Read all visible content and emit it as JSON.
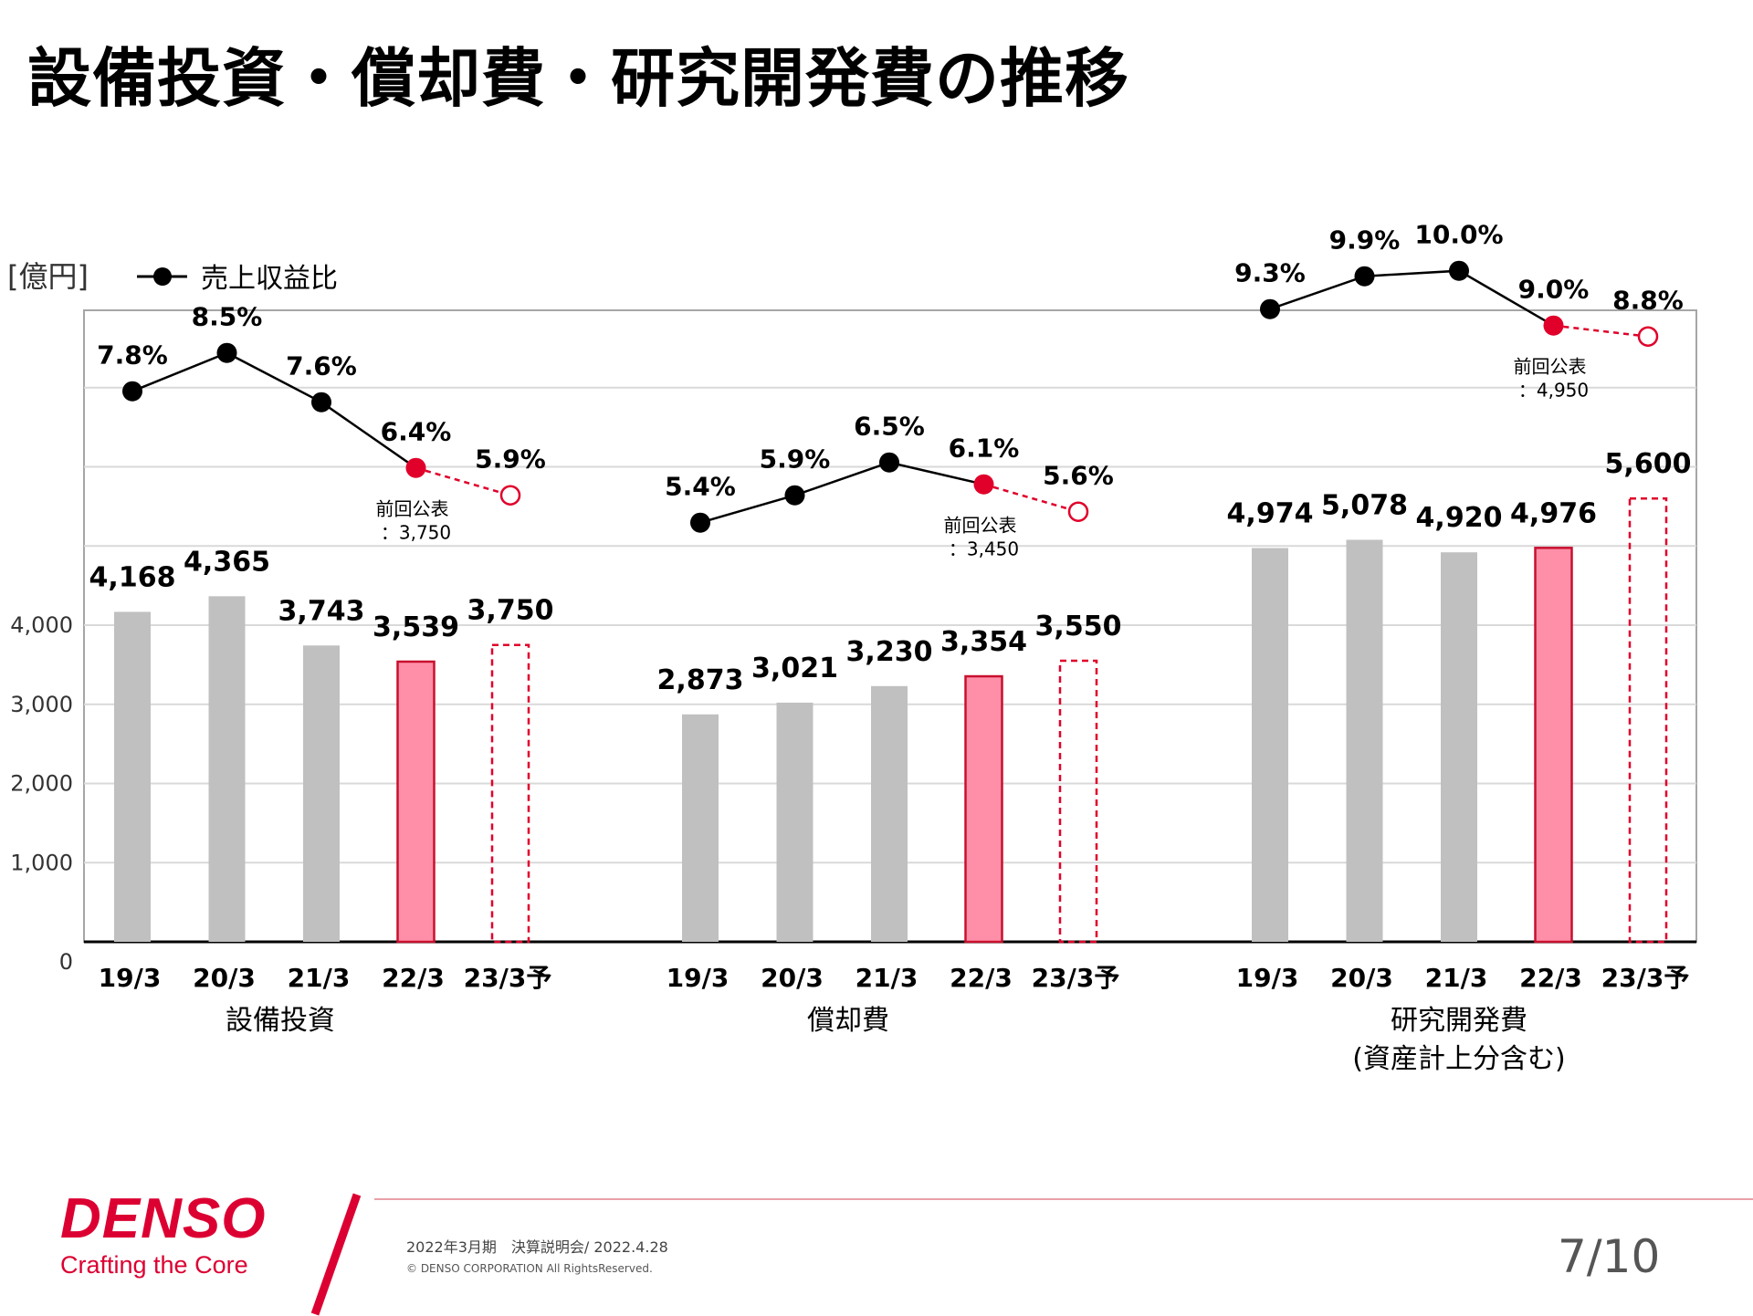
{
  "title": "設備投資・償却費・研究開発費の推移",
  "chart_data": {
    "type": "bar",
    "unit_label": "[億円]",
    "legend_label": "売上収益比",
    "ylim": [
      0,
      8000
    ],
    "y_ticks": [
      0,
      1000,
      2000,
      3000,
      4000
    ],
    "y_tick_labels": [
      "0",
      "1,000",
      "2,000",
      "3,000",
      "4,000"
    ],
    "categories": [
      "19/3",
      "20/3",
      "21/3",
      "22/3",
      "23/3予"
    ],
    "groups": [
      {
        "name": "設備投資",
        "name_line2": "",
        "values": [
          4168,
          4365,
          3743,
          3539,
          3750
        ],
        "value_labels": [
          "4,168",
          "4,365",
          "3,743",
          "3,539",
          "3,750"
        ],
        "ratios": [
          7.8,
          8.5,
          7.6,
          6.4,
          5.9
        ],
        "ratio_labels": [
          "7.8%",
          "8.5%",
          "7.6%",
          "6.4%",
          "5.9%"
        ],
        "prev_announce_label": "前回公表",
        "prev_announce_value": "：3,750"
      },
      {
        "name": "償却費",
        "name_line2": "",
        "values": [
          2873,
          3021,
          3230,
          3354,
          3550
        ],
        "value_labels": [
          "2,873",
          "3,021",
          "3,230",
          "3,354",
          "3,550"
        ],
        "ratios": [
          5.4,
          5.9,
          6.5,
          6.1,
          5.6
        ],
        "ratio_labels": [
          "5.4%",
          "5.9%",
          "6.5%",
          "6.1%",
          "5.6%"
        ],
        "prev_announce_label": "前回公表",
        "prev_announce_value": "：3,450"
      },
      {
        "name": "研究開発費",
        "name_line2": "(資産計上分含む)",
        "values": [
          4974,
          5078,
          4920,
          4976,
          5600
        ],
        "value_labels": [
          "4,974",
          "5,078",
          "4,920",
          "4,976",
          "5,600"
        ],
        "ratios": [
          9.3,
          9.9,
          10.0,
          9.0,
          8.8
        ],
        "ratio_labels": [
          "9.3%",
          "9.9%",
          "10.0%",
          "9.0%",
          "8.8%"
        ],
        "prev_announce_label": "前回公表",
        "prev_announce_value": "：4,950"
      }
    ],
    "colors": {
      "past_bar": "#c0c0c0",
      "current_bar": "#ff8fa8",
      "current_border": "#c8102e",
      "forecast_border": "#e0002a",
      "line": "#000000",
      "highlight_point": "#e0002a",
      "grid": "#d9d9d9"
    }
  },
  "footer": {
    "brand": "DENSO",
    "tagline": "Crafting the Core",
    "event": "2022年3月期　決算説明会/ 2022.4.28",
    "copyright": "© DENSO CORPORATION All RightsReserved.",
    "page": "7/10"
  }
}
